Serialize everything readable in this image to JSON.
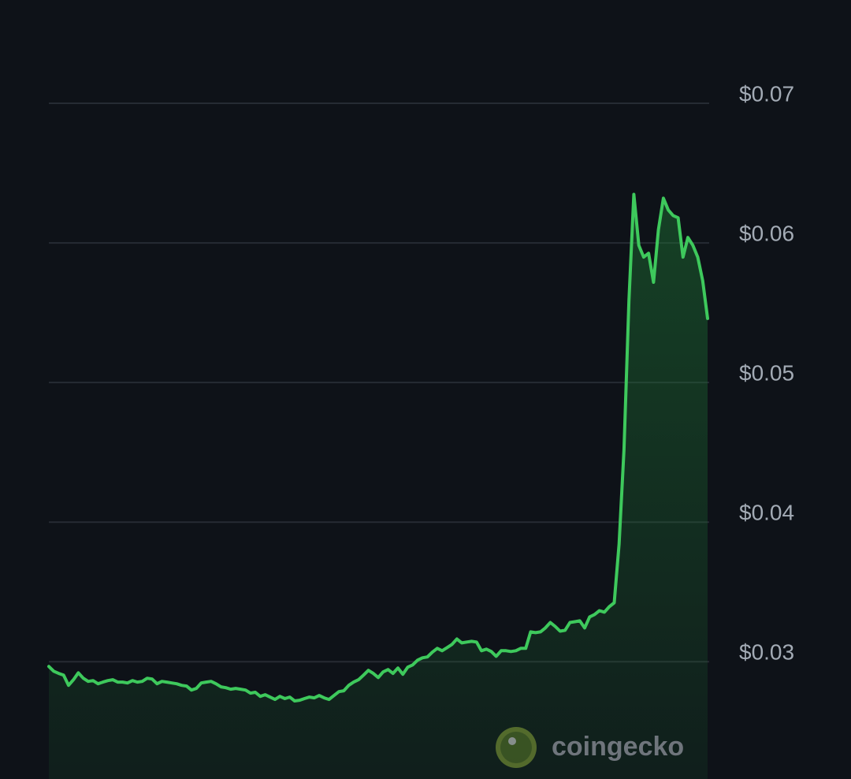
{
  "chart_data": {
    "type": "area",
    "values": [
      0.02966,
      0.02932,
      0.02916,
      0.02904,
      0.02831,
      0.02871,
      0.02921,
      0.02882,
      0.02859,
      0.02865,
      0.02842,
      0.02854,
      0.02865,
      0.02871,
      0.02854,
      0.02854,
      0.02848,
      0.02865,
      0.02854,
      0.02859,
      0.02882,
      0.02876,
      0.02842,
      0.02859,
      0.02854,
      0.02848,
      0.02842,
      0.02831,
      0.02826,
      0.02797,
      0.02809,
      0.02848,
      0.02854,
      0.02859,
      0.02842,
      0.0282,
      0.02814,
      0.02803,
      0.02809,
      0.02803,
      0.02797,
      0.02775,
      0.02781,
      0.02752,
      0.02764,
      0.02747,
      0.0273,
      0.02752,
      0.02736,
      0.02747,
      0.02719,
      0.02724,
      0.02736,
      0.02747,
      0.02741,
      0.02758,
      0.02741,
      0.0273,
      0.02758,
      0.02786,
      0.02792,
      0.02831,
      0.02854,
      0.02871,
      0.02904,
      0.02938,
      0.02916,
      0.02887,
      0.02927,
      0.02944,
      0.02916,
      0.02955,
      0.0291,
      0.02961,
      0.02977,
      0.03011,
      0.03028,
      0.03034,
      0.03068,
      0.03096,
      0.03079,
      0.03101,
      0.03124,
      0.03163,
      0.03135,
      0.03141,
      0.03146,
      0.03141,
      0.03079,
      0.0309,
      0.03073,
      0.03039,
      0.03079,
      0.03079,
      0.03073,
      0.03079,
      0.03096,
      0.03096,
      0.03214,
      0.03208,
      0.03214,
      0.03242,
      0.03281,
      0.03253,
      0.03219,
      0.03225,
      0.03281,
      0.03287,
      0.03293,
      0.03242,
      0.03321,
      0.03338,
      0.03366,
      0.03355,
      0.03394,
      0.03422,
      0.03844,
      0.04519,
      0.05589,
      0.06348,
      0.05983,
      0.05898,
      0.05926,
      0.05718,
      0.06095,
      0.0632,
      0.06236,
      0.06196,
      0.0618,
      0.05898,
      0.06039,
      0.05983,
      0.05898,
      0.05729,
      0.05459
    ],
    "color": "#3ec95c",
    "ylim": [
      0.0216,
      0.0774
    ],
    "yticks": [
      {
        "value": 0.03,
        "label": "$0.03"
      },
      {
        "value": 0.04,
        "label": "$0.04"
      },
      {
        "value": 0.05,
        "label": "$0.05"
      },
      {
        "value": 0.06,
        "label": "$0.06"
      },
      {
        "value": 0.07,
        "label": "$0.07"
      }
    ],
    "grid": true,
    "watermark": "coingecko"
  }
}
